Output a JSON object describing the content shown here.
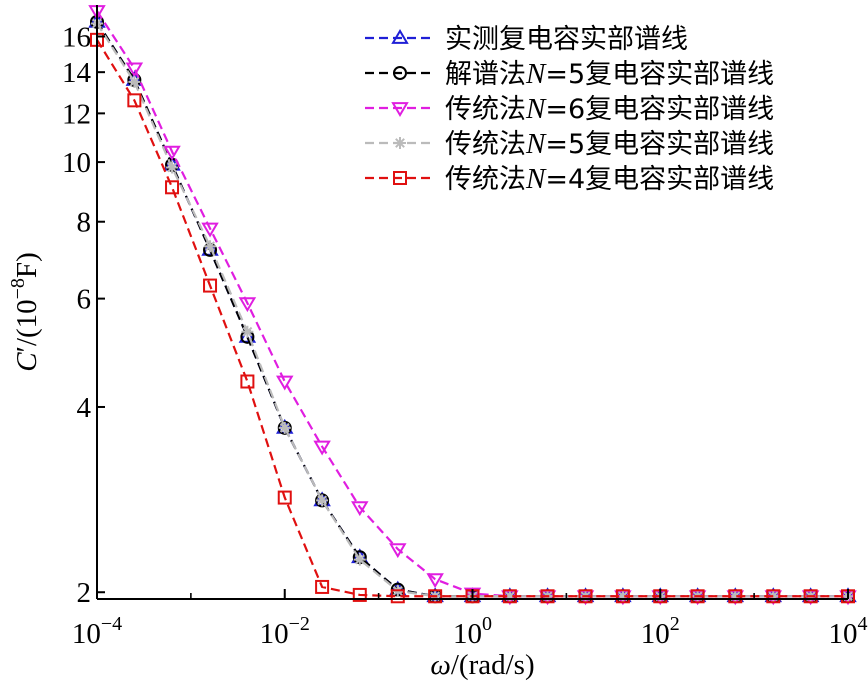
{
  "chart_data": {
    "type": "line",
    "xscale": "log",
    "yscale": "log",
    "xlim": [
      0.0001,
      10000
    ],
    "ylim": [
      1.95,
      18
    ],
    "xticks": [
      {
        "value": 0.0001,
        "base": "10",
        "exp": "−4"
      },
      {
        "value": 0.01,
        "base": "10",
        "exp": "−2"
      },
      {
        "value": 1,
        "base": "10",
        "exp": "0"
      },
      {
        "value": 100,
        "base": "10",
        "exp": "2"
      },
      {
        "value": 10000,
        "base": "10",
        "exp": "4"
      }
    ],
    "yticks": [
      {
        "value": 2,
        "label": "2"
      },
      {
        "value": 4,
        "label": "4"
      },
      {
        "value": 6,
        "label": "6"
      },
      {
        "value": 8,
        "label": "8"
      },
      {
        "value": 10,
        "label": "10"
      },
      {
        "value": 12,
        "label": "12"
      },
      {
        "value": 14,
        "label": "14"
      },
      {
        "value": 16,
        "label": "16"
      }
    ],
    "xlabel": {
      "italic": "ω",
      "rest": "/(rad/s)"
    },
    "ylabel": {
      "italic": "C",
      "rest1": "′/(10",
      "sup": "−8",
      "rest2": "F)"
    },
    "legend_position": "top-right",
    "x": [
      0.0001,
      0.00025,
      0.00063,
      0.0016,
      0.004,
      0.01,
      0.025,
      0.063,
      0.16,
      0.4,
      1,
      2.5,
      6.3,
      16,
      40,
      100,
      250,
      630,
      1600,
      4000,
      10000
    ],
    "series": [
      {
        "name": "实测复电容实部谱线",
        "name_parts": [
          {
            "t": "实测复电容实部谱线",
            "i": false
          }
        ],
        "color": "#1f1fd6",
        "marker": "triangle-up",
        "values": [
          16.9,
          13.6,
          9.9,
          7.2,
          5.2,
          3.7,
          2.82,
          2.28,
          2.02,
          1.97,
          1.97,
          1.97,
          1.97,
          1.97,
          1.97,
          1.97,
          1.97,
          1.97,
          1.97,
          1.97,
          1.97
        ]
      },
      {
        "name": "解谱法N=5复电容实部谱线",
        "name_parts": [
          {
            "t": "解谱法",
            "i": false
          },
          {
            "t": "N",
            "i": true
          },
          {
            "t": "=5复电容实部谱线",
            "i": false
          }
        ],
        "color": "#000000",
        "marker": "circle",
        "values": [
          16.9,
          13.6,
          9.9,
          7.2,
          5.2,
          3.7,
          2.82,
          2.28,
          2.02,
          1.97,
          1.97,
          1.97,
          1.97,
          1.97,
          1.97,
          1.97,
          1.97,
          1.97,
          1.97,
          1.97,
          1.97
        ]
      },
      {
        "name": "传统法N=6复电容实部谱线",
        "name_parts": [
          {
            "t": "传统法",
            "i": false
          },
          {
            "t": "N",
            "i": true
          },
          {
            "t": "=6复电容实部谱线",
            "i": false
          }
        ],
        "color": "#e01ee0",
        "marker": "triangle-down",
        "values": [
          17.6,
          14.2,
          10.4,
          7.8,
          5.9,
          4.4,
          3.45,
          2.75,
          2.35,
          2.1,
          1.99,
          1.97,
          1.97,
          1.97,
          1.97,
          1.97,
          1.97,
          1.97,
          1.97,
          1.97,
          1.97
        ]
      },
      {
        "name": "传统法N=5复电容实部谱线",
        "name_parts": [
          {
            "t": "传统法",
            "i": false
          },
          {
            "t": "N",
            "i": true
          },
          {
            "t": "=5复电容实部谱线",
            "i": false
          }
        ],
        "color": "#bbbbbb",
        "marker": "asterisk",
        "values": [
          16.8,
          13.5,
          9.8,
          7.3,
          5.3,
          3.7,
          2.82,
          2.26,
          2.01,
          1.97,
          1.97,
          1.97,
          1.97,
          1.97,
          1.97,
          1.97,
          1.97,
          1.97,
          1.97,
          1.97,
          1.97
        ]
      },
      {
        "name": "传统法N=4复电容实部谱线",
        "name_parts": [
          {
            "t": "传统法",
            "i": false
          },
          {
            "t": "N",
            "i": true
          },
          {
            "t": "=4复电容实部谱线",
            "i": false
          }
        ],
        "color": "#e01010",
        "marker": "square",
        "values": [
          15.8,
          12.6,
          9.1,
          6.3,
          4.4,
          2.85,
          2.04,
          1.98,
          1.97,
          1.97,
          1.97,
          1.97,
          1.97,
          1.97,
          1.97,
          1.97,
          1.97,
          1.97,
          1.97,
          1.97,
          1.97
        ]
      }
    ]
  }
}
